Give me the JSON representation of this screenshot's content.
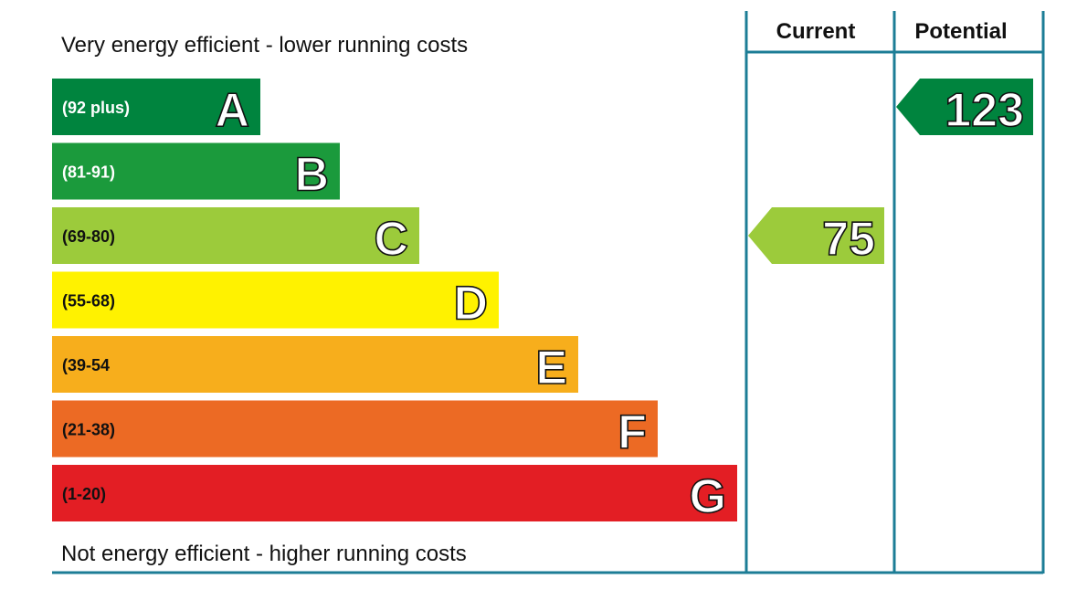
{
  "chart_data": {
    "type": "bar",
    "top_caption": "Very energy efficient - lower running costs",
    "bottom_caption": "Not energy efficient - higher running costs",
    "columns": {
      "current": "Current",
      "potential": "Potential"
    },
    "bands": [
      {
        "letter": "A",
        "range": "(92 plus)",
        "min": 92,
        "max": null,
        "color": "#00843e",
        "label_color": "#ffffff"
      },
      {
        "letter": "B",
        "range": "(81-91)",
        "min": 81,
        "max": 91,
        "color": "#1b9a3c",
        "label_color": "#ffffff"
      },
      {
        "letter": "C",
        "range": "(69-80)",
        "min": 69,
        "max": 80,
        "color": "#9ccb3b",
        "label_color": "#111111"
      },
      {
        "letter": "D",
        "range": "(55-68)",
        "min": 55,
        "max": 68,
        "color": "#fff200",
        "label_color": "#111111"
      },
      {
        "letter": "E",
        "range": "(39-54",
        "min": 39,
        "max": 54,
        "color": "#f7ae1c",
        "label_color": "#111111"
      },
      {
        "letter": "F",
        "range": "(21-38)",
        "min": 21,
        "max": 38,
        "color": "#ec6a24",
        "label_color": "#111111"
      },
      {
        "letter": "G",
        "range": "(1-20)",
        "min": 1,
        "max": 20,
        "color": "#e31e24",
        "label_color": "#111111"
      }
    ],
    "ratings": {
      "current": {
        "value": 75,
        "band": "C",
        "color": "#9ccb3b"
      },
      "potential": {
        "value": 123,
        "band": "A",
        "color": "#00843e"
      }
    },
    "frame_color": "#1c7d96"
  }
}
